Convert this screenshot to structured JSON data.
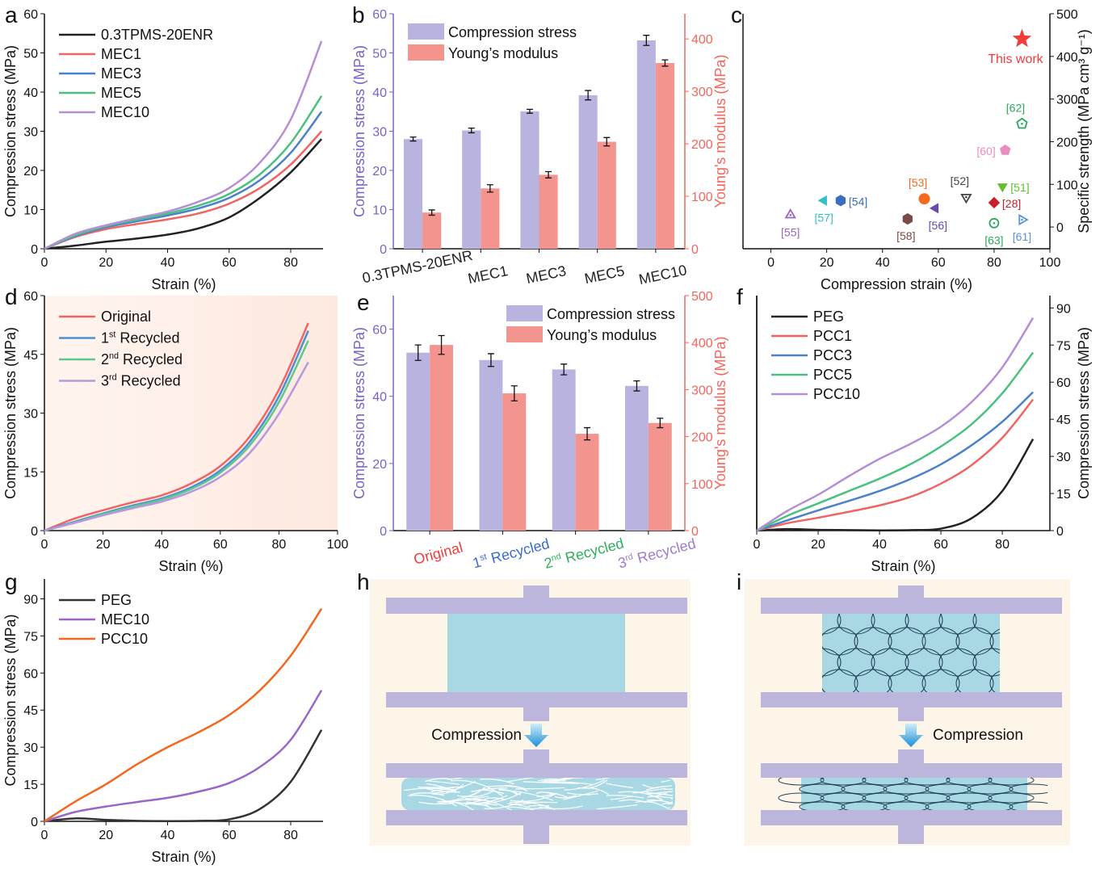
{
  "panel_labels": [
    "a",
    "b",
    "c",
    "d",
    "e",
    "f",
    "g",
    "h",
    "i"
  ],
  "chart_data": [
    {
      "id": "a",
      "type": "line",
      "xlabel": "Strain (%)",
      "ylabel": "Compression stress (MPa)",
      "xlim": [
        0,
        90.5
      ],
      "ylim": [
        0,
        60
      ],
      "xticks": [
        0,
        20,
        40,
        60,
        80
      ],
      "yticks": [
        0,
        10,
        20,
        30,
        40,
        50,
        60
      ],
      "legend": "top-left",
      "x": [
        0,
        10,
        20,
        30,
        40,
        50,
        60,
        70,
        80,
        90
      ],
      "series": [
        {
          "name": "0.3TPMS-20ENR",
          "color": "#222222",
          "values": [
            0,
            0.8,
            1.8,
            2.6,
            3.6,
            5.2,
            8,
            13,
            19.5,
            28
          ]
        },
        {
          "name": "MEC1",
          "color": "#f06464",
          "values": [
            0,
            3,
            5,
            6.3,
            7.5,
            9,
            11.5,
            15.5,
            21.5,
            30
          ]
        },
        {
          "name": "MEC3",
          "color": "#4a80cc",
          "values": [
            0,
            3.2,
            5.5,
            7,
            8.5,
            10.3,
            13,
            17.5,
            24.5,
            35
          ]
        },
        {
          "name": "MEC5",
          "color": "#4cc080",
          "values": [
            0,
            3.4,
            5.8,
            7.4,
            9,
            11,
            14,
            19,
            27,
            39
          ]
        },
        {
          "name": "MEC10",
          "color": "#b48fd6",
          "values": [
            0,
            3.8,
            6,
            7.8,
            9.5,
            12,
            15.5,
            22,
            33,
            53
          ]
        }
      ]
    },
    {
      "id": "b",
      "type": "bar",
      "ylabel": "Compression stress (MPa)",
      "ylabel_right": "Young's modulus (MPa)",
      "ylim": [
        0,
        60
      ],
      "ylim_right": [
        0,
        448
      ],
      "yticks": [
        0,
        10,
        20,
        30,
        40,
        50,
        60
      ],
      "yticks_right": [
        0,
        100,
        200,
        300,
        400
      ],
      "legend": "top-left",
      "categories": [
        "0.3TPMS-20ENR",
        "MEC1",
        "MEC3",
        "MEC5",
        "MEC10"
      ],
      "category_colors": [
        "#222222",
        "#222222",
        "#222222",
        "#222222",
        "#222222"
      ],
      "series": [
        {
          "name": "Compression stress",
          "color": "#b9b3df",
          "axis": "left",
          "values": [
            28,
            30.2,
            35.1,
            39.2,
            53.2
          ],
          "errors": [
            0.5,
            0.6,
            0.5,
            1.2,
            1.3
          ]
        },
        {
          "name": "Young’s modulus",
          "color": "#f4948e",
          "axis": "right",
          "values": [
            69,
            115,
            141,
            204,
            354
          ],
          "errors": [
            5,
            7,
            6,
            8,
            6
          ]
        }
      ]
    },
    {
      "id": "c",
      "type": "scatter",
      "xlabel": "Compression strain (%)",
      "ylabel": "Specific strength (MPa cm³ g⁻¹)",
      "xlim": [
        -10,
        100
      ],
      "ylim": [
        -51,
        500
      ],
      "xticks": [
        0,
        20,
        40,
        60,
        80,
        100
      ],
      "yticks": [
        0,
        100,
        200,
        300,
        400,
        500
      ],
      "points": [
        {
          "label": "This work",
          "x": 90,
          "y": 441,
          "marker": "star",
          "color": "#f23b3b"
        },
        {
          "label": "[62]",
          "x": 90,
          "y": 242,
          "marker": "pentagon-open",
          "color": "#2aa860"
        },
        {
          "label": "[60]",
          "x": 84,
          "y": 180,
          "marker": "pentagon",
          "color": "#ea8cc0"
        },
        {
          "label": "[51]",
          "x": 83,
          "y": 95,
          "marker": "triangle-down",
          "color": "#62c030"
        },
        {
          "label": "[52]",
          "x": 70,
          "y": 70,
          "marker": "triangle-down-open",
          "color": "#444444"
        },
        {
          "label": "[53]",
          "x": 55,
          "y": 66,
          "marker": "circle",
          "color": "#f56a1c"
        },
        {
          "label": "[54]",
          "x": 25,
          "y": 62,
          "marker": "hexagon",
          "color": "#3a6cc0"
        },
        {
          "label": "[57]",
          "x": 19,
          "y": 62,
          "marker": "triangle-left",
          "color": "#30c0c8"
        },
        {
          "label": "[56]",
          "x": 59,
          "y": 44,
          "marker": "triangle-left",
          "color": "#6a48b0"
        },
        {
          "label": "[28]",
          "x": 80,
          "y": 57,
          "marker": "diamond",
          "color": "#c81e2a"
        },
        {
          "label": "[58]",
          "x": 49,
          "y": 19,
          "marker": "hexagon",
          "color": "#7a4a44"
        },
        {
          "label": "[63]",
          "x": 80,
          "y": 9,
          "marker": "circle-dot-open",
          "color": "#2aa860"
        },
        {
          "label": "[61]",
          "x": 90,
          "y": 17,
          "marker": "triangle-right-open",
          "color": "#5a94d8"
        },
        {
          "label": "[55]",
          "x": 7,
          "y": 28,
          "marker": "triangle-up-open",
          "color": "#9a66c0"
        }
      ]
    },
    {
      "id": "d",
      "type": "line",
      "xlabel": "Strain (%)",
      "ylabel": "Compression stress (MPa)",
      "xlim": [
        0,
        100
      ],
      "ylim": [
        0,
        60
      ],
      "xticks": [
        0,
        20,
        40,
        60,
        80,
        100
      ],
      "yticks": [
        0,
        15,
        30,
        45,
        60
      ],
      "legend": "top-left",
      "background": "#fde9e0",
      "x": [
        0,
        10,
        20,
        30,
        40,
        50,
        60,
        70,
        80,
        90
      ],
      "series": [
        {
          "name": "Original",
          "color": "#f06464",
          "values": [
            0,
            3,
            5.2,
            7.2,
            9,
            12,
            16.5,
            24,
            36,
            53
          ]
        },
        {
          "name": "1st Recycled",
          "name_parts": [
            "1",
            "st",
            " Recycled"
          ],
          "color": "#4a90d6",
          "values": [
            0,
            2.2,
            4.4,
            6.4,
            8.2,
            11,
            15.4,
            22.6,
            34.3,
            51
          ]
        },
        {
          "name": "2nd Recycled",
          "name_parts": [
            "2",
            "nd",
            " Recycled"
          ],
          "color": "#5cc890",
          "values": [
            0,
            2,
            4.2,
            6.1,
            7.9,
            10.6,
            14.8,
            21.7,
            32.8,
            48.5
          ]
        },
        {
          "name": "3rd Recycled",
          "name_parts": [
            "3",
            "rd",
            " Recycled"
          ],
          "color": "#b898dc",
          "values": [
            0,
            1.9,
            3.9,
            5.7,
            7.4,
            9.9,
            13.7,
            19.8,
            29.8,
            43
          ]
        }
      ]
    },
    {
      "id": "e",
      "type": "bar",
      "ylabel": "Compression stress (MPa)",
      "ylabel_right": "Young's modulus (MPa)",
      "ylim": [
        0,
        70
      ],
      "ylim_right": [
        0,
        500
      ],
      "yticks": [
        0,
        20,
        40,
        60
      ],
      "yticks_right": [
        0,
        100,
        200,
        300,
        400,
        500
      ],
      "legend": "top-right",
      "categories": [
        "Original",
        "1st Recycled",
        "2nd Recycled",
        "3rd Recycled"
      ],
      "category_parts": [
        [
          "Original",
          "",
          ""
        ],
        [
          "1",
          "st",
          " Recycled"
        ],
        [
          "2",
          "nd",
          " Recycled"
        ],
        [
          "3",
          "rd",
          " Recycled"
        ]
      ],
      "category_colors": [
        "#f23b3b",
        "#3a6cd0",
        "#2fb05c",
        "#a07cd0"
      ],
      "series": [
        {
          "name": "Compression stress",
          "color": "#b9b3df",
          "axis": "left",
          "values": [
            53,
            50.8,
            48,
            43.1
          ],
          "errors": [
            2.3,
            1.9,
            1.6,
            1.5
          ]
        },
        {
          "name": "Young’s modulus",
          "color": "#f4948e",
          "axis": "right",
          "values": [
            395,
            292,
            206,
            229
          ],
          "errors": [
            20,
            16,
            13,
            10
          ]
        }
      ]
    },
    {
      "id": "f",
      "type": "line",
      "xlabel": "Strain (%)",
      "ylabel": "Compression stress (MPa)",
      "y_axis_side": "right",
      "xlim": [
        0,
        95.5
      ],
      "ylim": [
        0,
        95
      ],
      "xticks": [
        0,
        20,
        40,
        60,
        80
      ],
      "yticks": [
        0,
        15,
        30,
        45,
        60,
        75,
        90
      ],
      "legend": "top-left",
      "x": [
        0,
        10,
        20,
        30,
        40,
        50,
        60,
        70,
        80,
        90
      ],
      "series": [
        {
          "name": "PEG",
          "color": "#222222",
          "values": [
            0,
            0.6,
            0.3,
            0.2,
            0.1,
            0.2,
            0.8,
            5,
            16,
            37
          ]
        },
        {
          "name": "PCC1",
          "color": "#f06464",
          "values": [
            0,
            3,
            5.2,
            7.6,
            10.2,
            13.6,
            19,
            26.5,
            37.5,
            53
          ]
        },
        {
          "name": "PCC3",
          "color": "#4a80cc",
          "values": [
            0,
            4.2,
            8.2,
            12,
            16,
            20.8,
            26.8,
            34.5,
            44,
            56
          ]
        },
        {
          "name": "PCC5",
          "color": "#4cc080",
          "values": [
            0,
            6,
            11,
            16,
            21,
            26.8,
            34,
            43,
            55.5,
            72
          ]
        },
        {
          "name": "PCC10",
          "color": "#b48fd6",
          "values": [
            0,
            8,
            14.5,
            22,
            29,
            35,
            42,
            52,
            66,
            86
          ]
        }
      ]
    },
    {
      "id": "g",
      "type": "line",
      "xlabel": "Strain (%)",
      "ylabel": "Compression stress (MPa)",
      "xlim": [
        0,
        90.5
      ],
      "ylim": [
        0,
        98
      ],
      "xticks": [
        0,
        20,
        40,
        60,
        80
      ],
      "yticks": [
        0,
        15,
        30,
        45,
        60,
        75,
        90
      ],
      "legend": "top-left",
      "x": [
        0,
        10,
        20,
        30,
        40,
        50,
        60,
        70,
        80,
        90
      ],
      "series": [
        {
          "name": "PEG",
          "color": "#333333",
          "values": [
            0,
            1.2,
            0.6,
            0.2,
            0.1,
            0.2,
            0.8,
            5,
            16,
            37
          ]
        },
        {
          "name": "MEC10",
          "color": "#9a66c8",
          "values": [
            0,
            3.8,
            6,
            7.8,
            9.5,
            12,
            15.5,
            22,
            33,
            53
          ]
        },
        {
          "name": "PCC10",
          "color": "#f5661e",
          "values": [
            0,
            8,
            15,
            23,
            30,
            36,
            43,
            53,
            67,
            86
          ]
        }
      ]
    }
  ],
  "schematics": {
    "h": {
      "arrow_label": "Compression",
      "before_fill": "#a8d8e4",
      "structure": "fibers"
    },
    "i": {
      "arrow_label": "Compression",
      "before_fill": "#a8d8e4",
      "structure": "cells"
    },
    "plate_color": "#bcb5dc",
    "background": "#fdf6e8"
  }
}
